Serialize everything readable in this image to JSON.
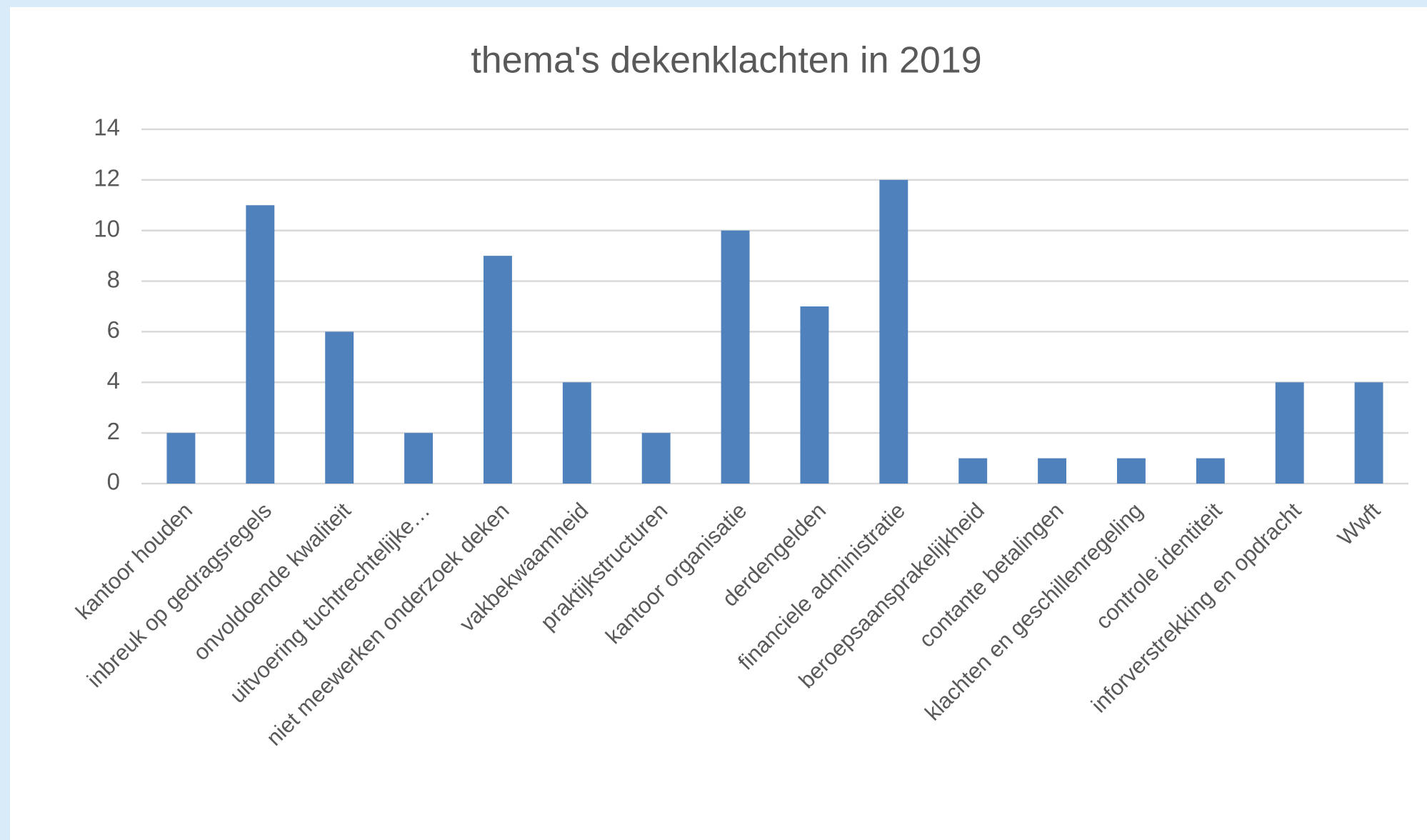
{
  "chart_data": {
    "type": "bar",
    "title": "thema's dekenklachten in 2019",
    "categories": [
      "kantoor houden",
      "inbreuk op gedragsregels",
      "onvoldoende kwaliteit",
      "uitvoering tuchtrechtelijke…",
      "niet meewerken onderzoek deken",
      "vakbekwaamheid",
      "praktijkstructuren",
      "kantoor organisatie",
      "derdengelden",
      "financiele administratie",
      "beroepsaansprakelijkheid",
      "contante betalingen",
      "klachten en geschillenregeling",
      "controle identiteit",
      "inforverstrekking en opdracht",
      "Wwft"
    ],
    "values": [
      2,
      11,
      6,
      2,
      9,
      4,
      2,
      10,
      7,
      12,
      1,
      1,
      1,
      1,
      4,
      4
    ],
    "color": "#4f81bd",
    "ylim": [
      0,
      14
    ],
    "yticks": [
      0,
      2,
      4,
      6,
      8,
      10,
      12,
      14
    ],
    "grid": true
  }
}
